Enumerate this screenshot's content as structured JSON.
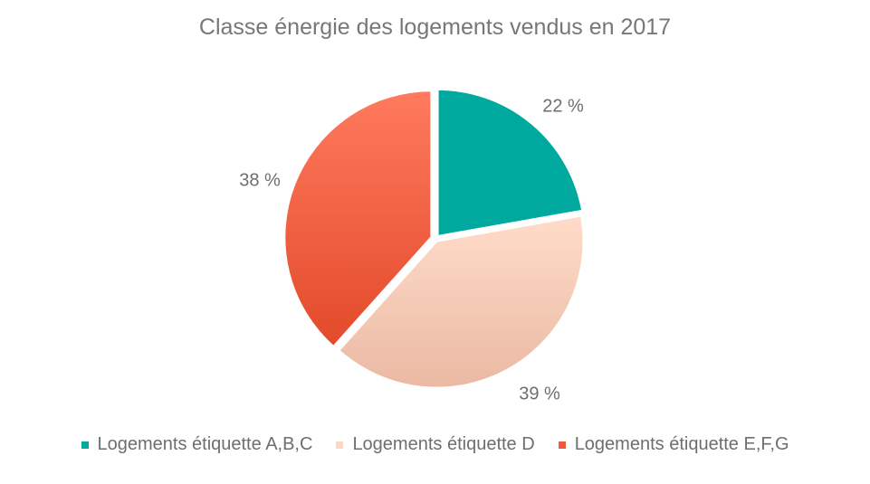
{
  "chart_data": {
    "type": "pie",
    "title": "Classe énergie des logements vendus en 2017",
    "slices": [
      {
        "label": "Logements étiquette A,B,C",
        "value": 22,
        "display": "22 %",
        "color": "#00a99d"
      },
      {
        "label": "Logements étiquette D",
        "value": 39,
        "display": "39 %",
        "color": "#fcd7c4"
      },
      {
        "label": "Logements étiquette E,F,G",
        "value": 38,
        "display": "38 %",
        "color": "#f4583a"
      }
    ],
    "legend": "bottom"
  }
}
